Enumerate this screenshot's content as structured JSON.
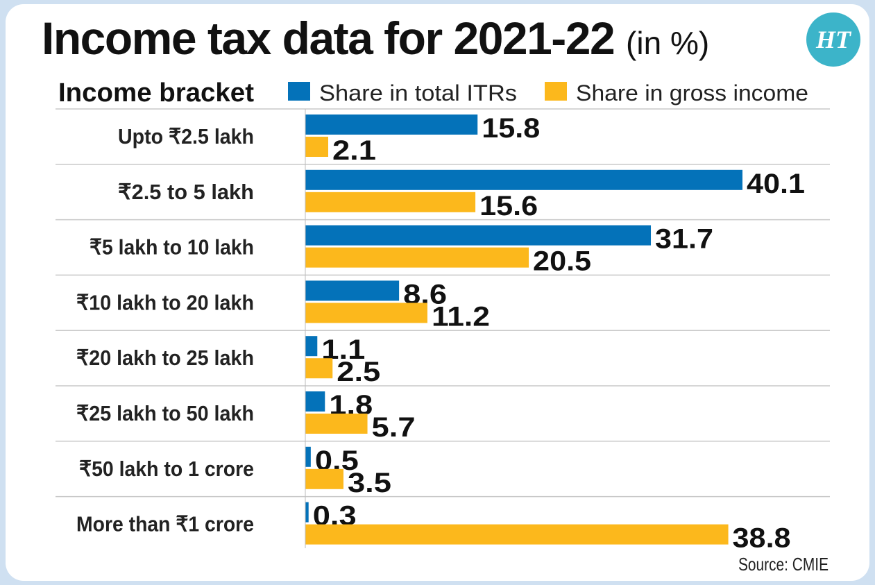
{
  "title": "Income tax data for 2021-22",
  "title_unit": "(in %)",
  "logo_text": "HT",
  "source": "Source: CMIE",
  "colors": {
    "itr": "#0472b9",
    "income": "#fcb81c",
    "text": "#111111",
    "divider": "#c8c8c8",
    "logo": "#3cb4c9"
  },
  "chart_data": {
    "type": "bar",
    "orientation": "horizontal",
    "category_header": "Income bracket",
    "categories": [
      "Upto ₹2.5 lakh",
      "₹2.5 to  5 lakh",
      "₹5 lakh to 10 lakh",
      "₹10 lakh to 20 lakh",
      "₹20 lakh to 25 lakh",
      "₹25 lakh to 50 lakh",
      "₹50 lakh to 1 crore",
      "More than ₹1 crore"
    ],
    "series": [
      {
        "name": "Share in total ITRs",
        "color": "#0472b9",
        "values": [
          15.8,
          40.1,
          31.7,
          8.6,
          1.1,
          1.8,
          0.5,
          0.3
        ]
      },
      {
        "name": "Share in gross income",
        "color": "#fcb81c",
        "values": [
          2.1,
          15.6,
          20.5,
          11.2,
          2.5,
          5.7,
          3.5,
          38.8
        ]
      }
    ],
    "value_labels": [
      [
        "15.8",
        "40.1",
        "31.7",
        "8.6",
        "1.1",
        "1.8",
        "0.5",
        "0.3"
      ],
      [
        "2.1",
        "15.6",
        "20.5",
        "11.2",
        "2.5",
        "5.7",
        "3.5",
        "38.8"
      ]
    ],
    "xlim": [
      0,
      40.1
    ],
    "legend_position": "top",
    "grid": false
  }
}
